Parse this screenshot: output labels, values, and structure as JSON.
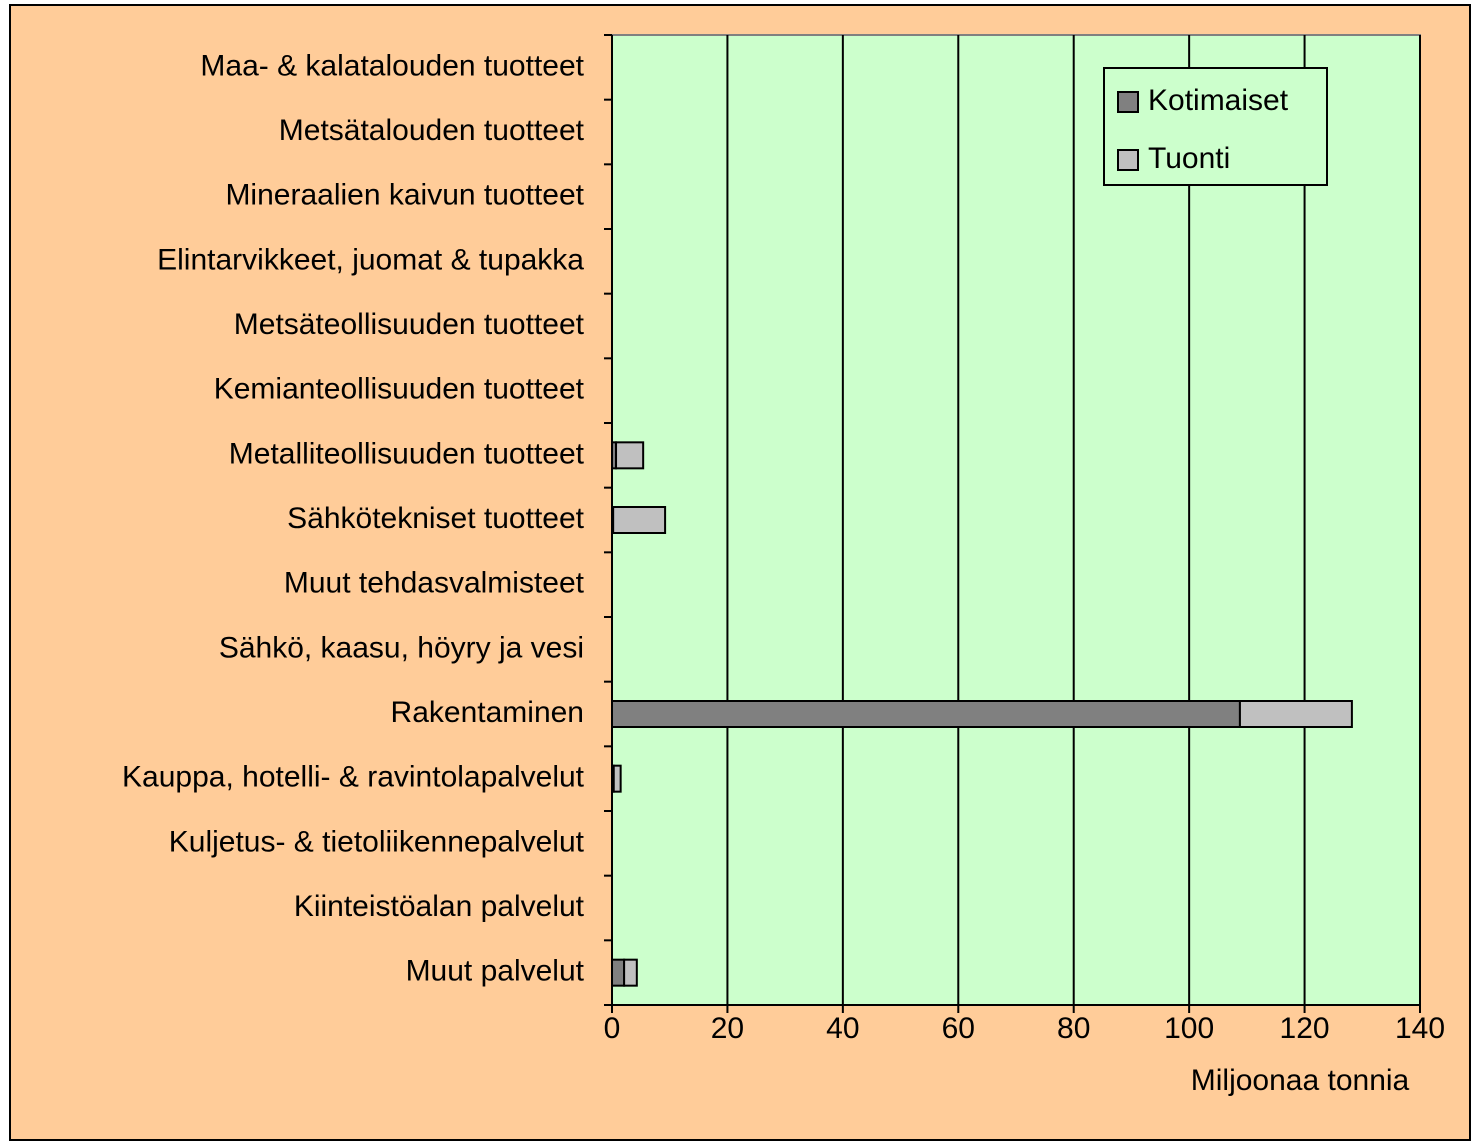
{
  "chart_data": {
    "type": "stacked_barh",
    "categories": [
      "Maa- & kalatalouden tuotteet",
      "Metsätalouden tuotteet",
      "Mineraalien kaivun tuotteet",
      "Elintarvikkeet, juomat & tupakka",
      "Metsäteollisuuden tuotteet",
      "Kemianteollisuuden tuotteet",
      "Metalliteollisuuden tuotteet",
      "Sähkötekniset tuotteet",
      "Muut tehdasvalmisteet",
      "Sähkö, kaasu, höyry ja vesi",
      "Rakentaminen",
      "Kauppa, hotelli- & ravintolapalvelut",
      "Kuljetus- & tietoliikennepalvelut",
      "Kiinteistöalan palvelut",
      "Muut palvelut"
    ],
    "series": [
      {
        "name": "Kotimaiset",
        "color": "#808080",
        "values": [
          0,
          0,
          0,
          0,
          0,
          0,
          0.7,
          0.2,
          0,
          0,
          108.8,
          0.3,
          0,
          0,
          2.1
        ]
      },
      {
        "name": "Tuonti",
        "color": "#c0c0c0",
        "values": [
          0,
          0,
          0,
          0,
          0,
          0,
          4.7,
          9.0,
          0,
          0,
          19.4,
          1.2,
          0,
          0,
          2.2
        ]
      }
    ],
    "xlabel": "Miljoonaa tonnia",
    "xlim": [
      0,
      140
    ],
    "xticks": [
      0,
      20,
      40,
      60,
      80,
      100,
      120,
      140
    ],
    "grid": true,
    "legend": "upper right"
  }
}
